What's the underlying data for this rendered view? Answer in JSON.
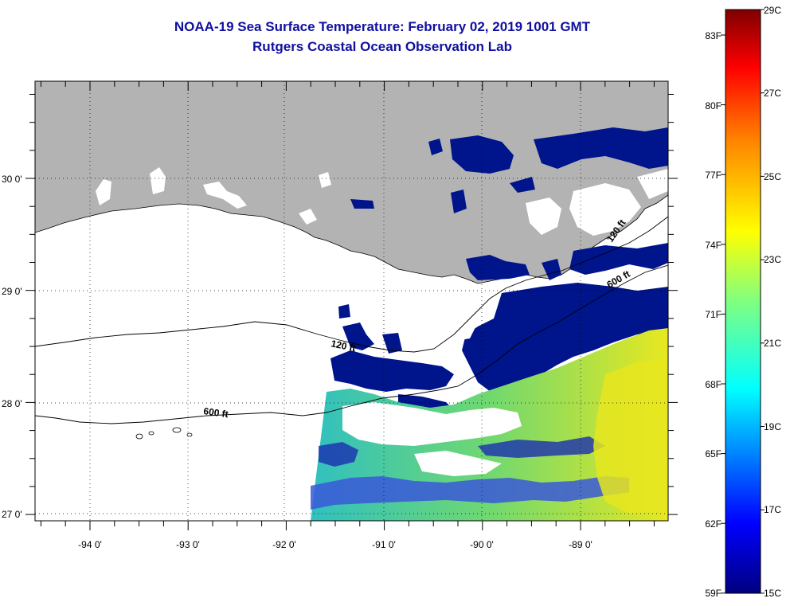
{
  "title": {
    "line1": "NOAA-19 Sea Surface Temperature:  February 02, 2019 1001 GMT",
    "line2": "Rutgers Coastal Ocean Observation Lab"
  },
  "map": {
    "lat_labels": [
      "30 0'",
      "29 0'",
      "28 0'",
      "27 0'"
    ],
    "lon_labels": [
      "-94 0'",
      "-93 0'",
      "-92 0'",
      "-91 0'",
      "-90 0'",
      "-89 0'"
    ],
    "contour_labels": {
      "west_600": "600 ft",
      "mid_120": "120 ft",
      "east_120": "120 ft",
      "east_600": "600 ft"
    },
    "colors": {
      "land": "#b3b3b3",
      "cold": "#00148c",
      "warm": "#e6e61e"
    }
  },
  "colorbar": {
    "fahrenheit": [
      "83F",
      "80F",
      "77F",
      "74F",
      "71F",
      "68F",
      "65F",
      "62F",
      "59F"
    ],
    "celsius": [
      "29C",
      "27C",
      "25C",
      "23C",
      "21C",
      "19C",
      "17C",
      "15C"
    ]
  }
}
